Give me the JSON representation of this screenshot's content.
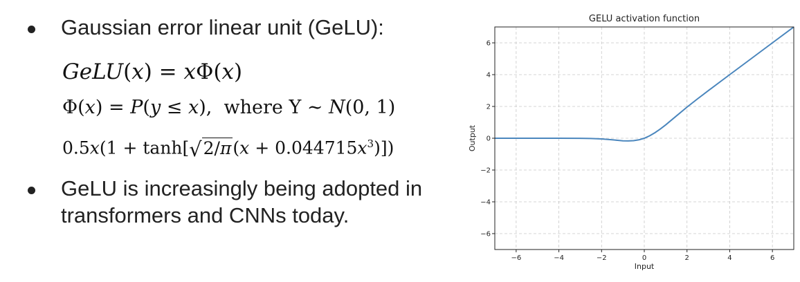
{
  "bullets": {
    "first": "Gaussian error linear unit (GeLU):",
    "second_line1": "GeLU is increasingly being adopted in",
    "second_line2": "transformers and CNNs today."
  },
  "equations": {
    "eq1": "GeLU(x) = xΦ(x)",
    "eq2": "Φ(x) = P(y ≤ x),  where Y ~ N(0, 1)",
    "eq3": "0.5x(1 + tanh[√(2/π)(x + 0.044715x³)])"
  },
  "chart_data": {
    "type": "line",
    "title": "GELU activation function",
    "xlabel": "Input",
    "ylabel": "Output",
    "xlim": [
      -7,
      7
    ],
    "ylim": [
      -7,
      7
    ],
    "xticks": [
      -6,
      -4,
      -2,
      0,
      2,
      4,
      6
    ],
    "yticks": [
      -6,
      -4,
      -2,
      0,
      2,
      4,
      6
    ],
    "xtick_labels": [
      "−6",
      "−4",
      "−2",
      "0",
      "2",
      "4",
      "6"
    ],
    "ytick_labels": [
      "−6",
      "−4",
      "−2",
      "0",
      "2",
      "4",
      "6"
    ],
    "grid": true,
    "series": [
      {
        "color": "#4a86bd",
        "x": [
          -7,
          -6,
          -5,
          -4,
          -3,
          -2.5,
          -2,
          -1.5,
          -1.25,
          -1,
          -0.75,
          -0.5,
          -0.25,
          0,
          0.25,
          0.5,
          0.75,
          1,
          1.5,
          2,
          2.5,
          3,
          4,
          5,
          6,
          7
        ],
        "y": [
          0,
          0,
          0,
          -0.0001,
          -0.004,
          -0.0155,
          -0.0455,
          -0.1003,
          -0.1321,
          -0.1588,
          -0.17,
          -0.1543,
          -0.0994,
          0,
          0.1506,
          0.3457,
          0.58,
          0.8412,
          1.3997,
          1.9546,
          2.4845,
          2.996,
          3.9999,
          5,
          6,
          7
        ]
      }
    ]
  }
}
